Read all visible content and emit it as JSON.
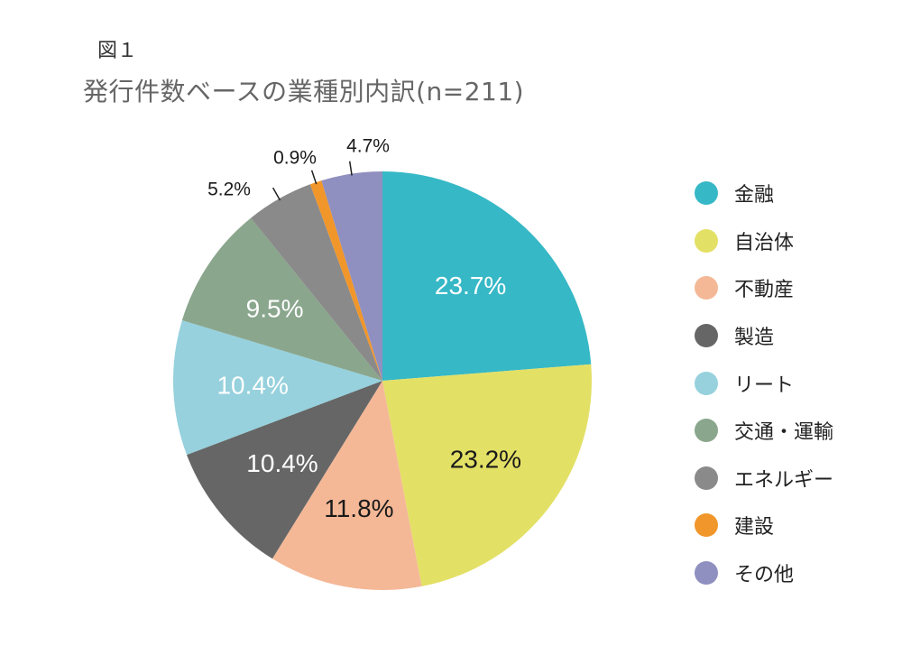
{
  "figure_label": "図１",
  "chart_data": {
    "type": "pie",
    "title": "発行件数ベースの業種別内訳(n=211)",
    "start_angle_deg": 0,
    "direction": "clockwise",
    "legend_position": "right",
    "slices": [
      {
        "name": "金融",
        "value": 23.7,
        "label": "23.7%",
        "color": "#36B8C6",
        "label_color": "#ffffff",
        "label_placement": "inside"
      },
      {
        "name": "自治体",
        "value": 23.2,
        "label": "23.2%",
        "color": "#E3E066",
        "label_color": "#1a1a1a",
        "label_placement": "inside"
      },
      {
        "name": "不動産",
        "value": 11.8,
        "label": "11.8%",
        "color": "#F4B897",
        "label_color": "#1a1a1a",
        "label_placement": "inside"
      },
      {
        "name": "製造",
        "value": 10.4,
        "label": "10.4%",
        "color": "#666666",
        "label_color": "#ffffff",
        "label_placement": "inside"
      },
      {
        "name": "リート",
        "value": 10.4,
        "label": "10.4%",
        "color": "#96D1DD",
        "label_color": "#ffffff",
        "label_placement": "inside"
      },
      {
        "name": "交通・運輸",
        "value": 9.5,
        "label": "9.5%",
        "color": "#8AA68D",
        "label_color": "#ffffff",
        "label_placement": "inside"
      },
      {
        "name": "エネルギー",
        "value": 5.2,
        "label": "5.2%",
        "color": "#8A8A8A",
        "label_color": "#1a1a1a",
        "label_placement": "outside"
      },
      {
        "name": "建設",
        "value": 0.9,
        "label": "0.9%",
        "color": "#F0962A",
        "label_color": "#1a1a1a",
        "label_placement": "outside"
      },
      {
        "name": "その他",
        "value": 4.7,
        "label": "4.7%",
        "color": "#8F8FC0",
        "label_color": "#1a1a1a",
        "label_placement": "outside"
      }
    ]
  }
}
